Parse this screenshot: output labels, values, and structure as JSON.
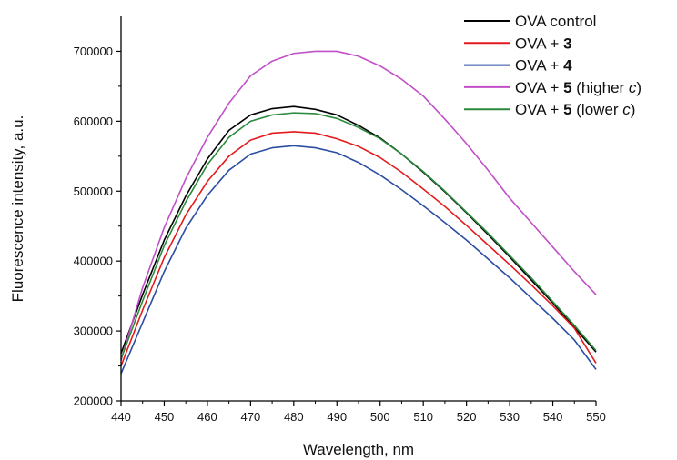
{
  "chart_data": {
    "type": "line",
    "title": "",
    "xlabel": "Wavelength, nm",
    "ylabel": "Fluorescence intensity, a.u.",
    "xlim": [
      440,
      550
    ],
    "ylim": [
      200000,
      750000
    ],
    "x_ticks": [
      440,
      450,
      460,
      470,
      480,
      490,
      500,
      510,
      520,
      530,
      540,
      550
    ],
    "y_ticks": [
      200000,
      300000,
      400000,
      500000,
      600000,
      700000
    ],
    "grid": false,
    "legend_position": "top-right",
    "x": [
      440,
      445,
      450,
      455,
      460,
      465,
      470,
      475,
      480,
      485,
      490,
      495,
      500,
      505,
      510,
      515,
      520,
      525,
      530,
      535,
      540,
      545,
      550
    ],
    "series": [
      {
        "name": "OVA control",
        "legend_parts": [
          {
            "text": "OVA control",
            "style": "normal"
          }
        ],
        "color": "#000000",
        "values": [
          268000,
          352000,
          430000,
          493000,
          546000,
          587000,
          609000,
          618000,
          621000,
          617000,
          609000,
          594000,
          576000,
          553000,
          527000,
          499000,
          469000,
          438000,
          406000,
          373000,
          340000,
          305000,
          270000
        ]
      },
      {
        "name": "OVA + 3",
        "legend_parts": [
          {
            "text": "OVA + ",
            "style": "normal"
          },
          {
            "text": "3",
            "style": "bold"
          }
        ],
        "color": "#e41a1c",
        "values": [
          250000,
          330000,
          405000,
          466000,
          514000,
          550000,
          573000,
          583000,
          585000,
          583000,
          575000,
          564000,
          548000,
          527000,
          503000,
          478000,
          451000,
          423000,
          395000,
          366000,
          336000,
          304000,
          254000
        ]
      },
      {
        "name": "OVA + 4",
        "legend_parts": [
          {
            "text": "OVA + ",
            "style": "normal"
          },
          {
            "text": "4",
            "style": "bold"
          }
        ],
        "color": "#2b4ea2",
        "values": [
          239000,
          312000,
          385000,
          447000,
          494000,
          530000,
          553000,
          562000,
          565000,
          562000,
          555000,
          541000,
          523000,
          502000,
          479000,
          455000,
          430000,
          403000,
          376000,
          347000,
          318000,
          287000,
          245000
        ]
      },
      {
        "name": "OVA + 5 (higher c)",
        "legend_parts": [
          {
            "text": "OVA + ",
            "style": "normal"
          },
          {
            "text": "5",
            "style": "bold"
          },
          {
            "text": " (higher ",
            "style": "normal"
          },
          {
            "text": "c",
            "style": "italic"
          },
          {
            "text": ")",
            "style": "normal"
          }
        ],
        "color": "#c04fc8",
        "values": [
          258000,
          362000,
          448000,
          518000,
          577000,
          626000,
          665000,
          686000,
          697000,
          700000,
          700000,
          693000,
          679000,
          660000,
          636000,
          603000,
          568000,
          530000,
          490000,
          455000,
          420000,
          385000,
          352000
        ]
      },
      {
        "name": "OVA + 5 (lower c)",
        "legend_parts": [
          {
            "text": "OVA + ",
            "style": "normal"
          },
          {
            "text": "5",
            "style": "bold"
          },
          {
            "text": " (lower ",
            "style": "normal"
          },
          {
            "text": "c",
            "style": "italic"
          },
          {
            "text": ")",
            "style": "normal"
          }
        ],
        "color": "#2a8a3b",
        "values": [
          260000,
          343000,
          422000,
          485000,
          538000,
          577000,
          600000,
          609000,
          612000,
          611000,
          604000,
          591000,
          575000,
          553000,
          528000,
          500000,
          470000,
          440000,
          408000,
          376000,
          342000,
          308000,
          272000
        ]
      }
    ]
  }
}
